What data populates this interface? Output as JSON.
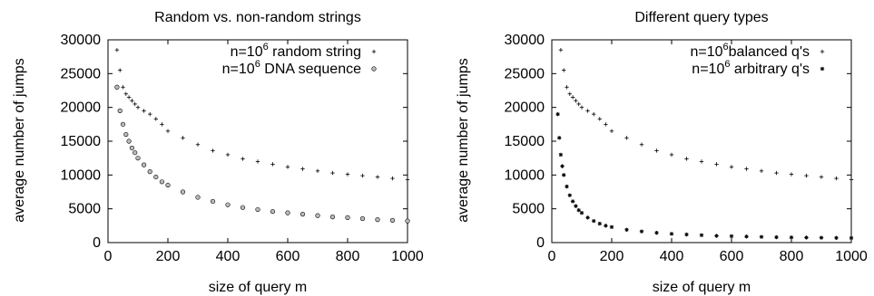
{
  "chart_data": [
    {
      "type": "scatter",
      "title": "Random vs. non-random strings",
      "xlabel": "size of query m",
      "ylabel": "average number of jumps",
      "xlim": [
        0,
        1000
      ],
      "ylim": [
        0,
        30000
      ],
      "xticks": [
        0,
        200,
        400,
        600,
        800,
        1000
      ],
      "yticks": [
        0,
        5000,
        10000,
        15000,
        20000,
        25000,
        30000
      ],
      "grid": false,
      "legend_position": "top-right",
      "series": [
        {
          "name": "n=10^6 random string",
          "legend_prefix": "n=10",
          "legend_exp": "6",
          "legend_suffix": " random string",
          "marker": "plus",
          "x": [
            30,
            40,
            50,
            60,
            70,
            80,
            90,
            100,
            120,
            140,
            160,
            180,
            200,
            250,
            300,
            350,
            400,
            450,
            500,
            550,
            600,
            650,
            700,
            750,
            800,
            850,
            900,
            950,
            1000
          ],
          "y": [
            28500,
            25500,
            23000,
            22000,
            21500,
            21000,
            20500,
            20000,
            19500,
            19000,
            18300,
            17500,
            16500,
            15500,
            14500,
            13600,
            13000,
            12400,
            12000,
            11600,
            11200,
            10900,
            10600,
            10300,
            10100,
            9900,
            9700,
            9500,
            9300
          ]
        },
        {
          "name": "n=10^6 DNA sequence",
          "legend_prefix": "n=10",
          "legend_exp": "6",
          "legend_suffix": " DNA sequence",
          "marker": "circle",
          "x": [
            30,
            40,
            50,
            60,
            70,
            80,
            90,
            100,
            120,
            140,
            160,
            180,
            200,
            250,
            300,
            350,
            400,
            450,
            500,
            550,
            600,
            650,
            700,
            750,
            800,
            850,
            900,
            950,
            1000
          ],
          "y": [
            23000,
            19500,
            17500,
            16000,
            15000,
            14000,
            13300,
            12500,
            11500,
            10500,
            9700,
            9000,
            8500,
            7500,
            6700,
            6100,
            5600,
            5200,
            4900,
            4600,
            4400,
            4200,
            4000,
            3800,
            3700,
            3550,
            3400,
            3300,
            3200
          ]
        }
      ]
    },
    {
      "type": "scatter",
      "title": "Different query types",
      "xlabel": "size of query m",
      "ylabel": "average number of jumps",
      "xlim": [
        0,
        1000
      ],
      "ylim": [
        0,
        30000
      ],
      "xticks": [
        0,
        200,
        400,
        600,
        800,
        1000
      ],
      "yticks": [
        0,
        5000,
        10000,
        15000,
        20000,
        25000,
        30000
      ],
      "grid": false,
      "legend_position": "top-right",
      "series": [
        {
          "name": "n=10^6 balanced q's",
          "legend_prefix": "n=10",
          "legend_exp": "6",
          "legend_suffix": "balanced q's",
          "marker": "plus",
          "x": [
            30,
            40,
            50,
            60,
            70,
            80,
            90,
            100,
            120,
            140,
            160,
            180,
            200,
            250,
            300,
            350,
            400,
            450,
            500,
            550,
            600,
            650,
            700,
            750,
            800,
            850,
            900,
            950,
            1000
          ],
          "y": [
            28500,
            25500,
            23000,
            22000,
            21500,
            21000,
            20500,
            20000,
            19500,
            19000,
            18300,
            17500,
            16500,
            15500,
            14500,
            13600,
            13000,
            12400,
            12000,
            11600,
            11200,
            10900,
            10600,
            10300,
            10100,
            9900,
            9700,
            9500,
            9300
          ]
        },
        {
          "name": "n=10^6 arbitrary q's",
          "legend_prefix": "n=10",
          "legend_exp": "6",
          "legend_suffix": " arbitrary q's",
          "marker": "star",
          "x": [
            20,
            25,
            30,
            35,
            40,
            50,
            60,
            70,
            80,
            90,
            100,
            120,
            140,
            160,
            180,
            200,
            250,
            300,
            350,
            400,
            450,
            500,
            550,
            600,
            650,
            700,
            750,
            800,
            850,
            900,
            950,
            1000
          ],
          "y": [
            19000,
            15500,
            13000,
            11300,
            10000,
            8300,
            7000,
            6100,
            5400,
            4800,
            4400,
            3700,
            3200,
            2800,
            2500,
            2300,
            1900,
            1650,
            1450,
            1300,
            1200,
            1100,
            1000,
            950,
            900,
            850,
            800,
            770,
            740,
            720,
            700,
            680
          ]
        }
      ]
    }
  ]
}
